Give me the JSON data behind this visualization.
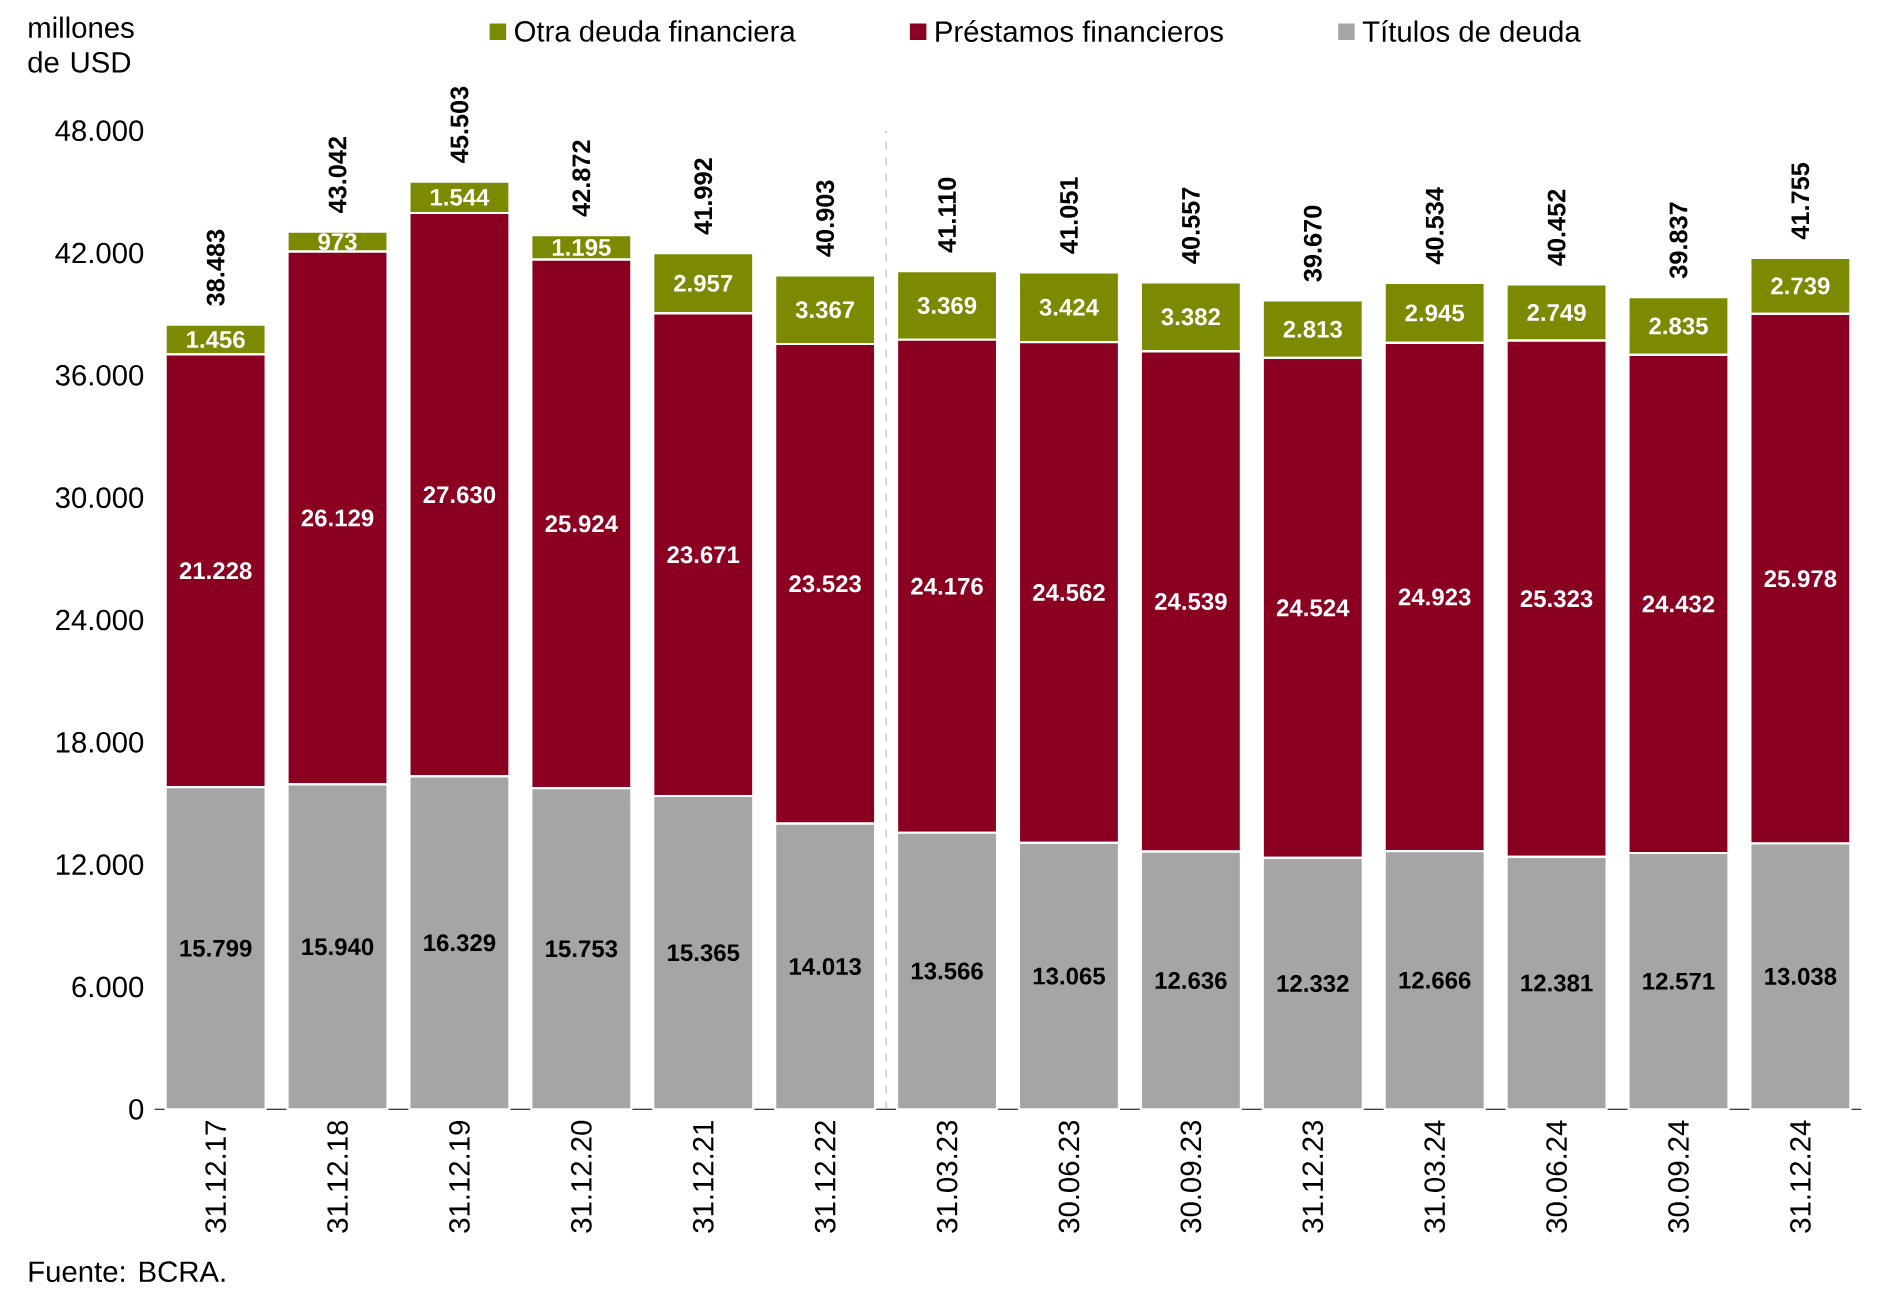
{
  "chart_data": {
    "type": "bar",
    "stacked": true,
    "ylabel": "millones de USD",
    "categories": [
      "31.12.17",
      "31.12.18",
      "31.12.19",
      "31.12.20",
      "31.12.21",
      "31.12.22",
      "31.03.23",
      "30.06.23",
      "30.09.23",
      "31.12.23",
      "31.03.24",
      "30.06.24",
      "30.09.24",
      "31.12.24"
    ],
    "series": [
      {
        "name": "Títulos de deuda",
        "color": "#a5a5a5",
        "values": [
          15799,
          15940,
          16329,
          15753,
          15365,
          14013,
          13566,
          13065,
          12636,
          12332,
          12666,
          12381,
          12571,
          13038
        ],
        "value_labels": [
          "15.799",
          "15.940",
          "16.329",
          "15.753",
          "15.365",
          "14.013",
          "13.566",
          "13.065",
          "12.636",
          "12.332",
          "12.666",
          "12.381",
          "12.571",
          "13.038"
        ]
      },
      {
        "name": "Préstamos financieros",
        "color": "#8b0021",
        "values": [
          21228,
          26129,
          27630,
          25924,
          23671,
          23523,
          24176,
          24562,
          24539,
          24524,
          24923,
          25323,
          24432,
          25978
        ],
        "value_labels": [
          "21.228",
          "26.129",
          "27.630",
          "25.924",
          "23.671",
          "23.523",
          "24.176",
          "24.562",
          "24.539",
          "24.524",
          "24.923",
          "25.323",
          "24.432",
          "25.978"
        ]
      },
      {
        "name": "Otra deuda financiera",
        "color": "#7b8a00",
        "values": [
          1456,
          973,
          1544,
          1195,
          2957,
          3367,
          3369,
          3424,
          3382,
          2813,
          2945,
          2749,
          2835,
          2739
        ],
        "value_labels": [
          "1.456",
          "973",
          "1.544",
          "1.195",
          "2.957",
          "3.367",
          "3.369",
          "3.424",
          "3.382",
          "2.813",
          "2.945",
          "2.749",
          "2.835",
          "2.739"
        ]
      }
    ],
    "totals": [
      "38.483",
      "43.042",
      "45.503",
      "42.872",
      "41.992",
      "40.903",
      "41.110",
      "41.051",
      "40.557",
      "39.670",
      "40.534",
      "40.452",
      "39.837",
      "41.755"
    ],
    "ylim": [
      0,
      48000
    ],
    "yticks": [
      {
        "value": 0,
        "label": "0"
      },
      {
        "value": 6000,
        "label": "6.000"
      },
      {
        "value": 12000,
        "label": "12.000"
      },
      {
        "value": 18000,
        "label": "18.000"
      },
      {
        "value": 24000,
        "label": "24.000"
      },
      {
        "value": 30000,
        "label": "30.000"
      },
      {
        "value": 36000,
        "label": "36.000"
      },
      {
        "value": 42000,
        "label": "42.000"
      },
      {
        "value": 48000,
        "label": "48.000"
      }
    ],
    "legend": "top",
    "annotations": [
      "Fuente: BCRA."
    ]
  }
}
